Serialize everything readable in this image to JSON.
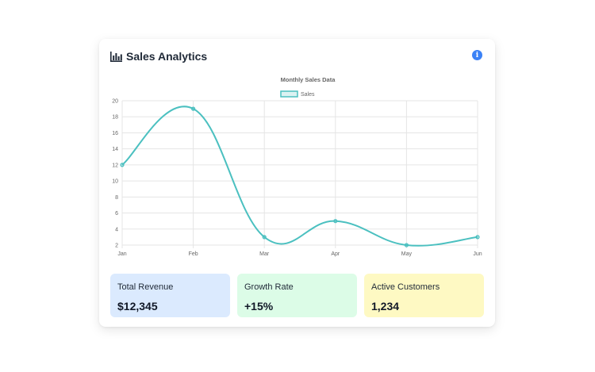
{
  "header": {
    "title": "Sales Analytics",
    "icon": "bar-chart-icon",
    "info_icon": "info-icon",
    "info_glyph": "i"
  },
  "chart_data": {
    "type": "line",
    "title": "Monthly Sales Data",
    "categories": [
      "Jan",
      "Feb",
      "Mar",
      "Apr",
      "May",
      "Jun"
    ],
    "series": [
      {
        "name": "Sales",
        "values": [
          12,
          19,
          3,
          5,
          2,
          3
        ],
        "color": "#4bc0c0"
      }
    ],
    "ylim": [
      2,
      20
    ],
    "yticks": [
      2,
      4,
      6,
      8,
      10,
      12,
      14,
      16,
      18,
      20
    ],
    "grid": true,
    "legend": "top-center"
  },
  "stats": [
    {
      "label": "Total Revenue",
      "value": "$12,345",
      "bg": "#dbeafe"
    },
    {
      "label": "Growth Rate",
      "value": "+15%",
      "bg": "#dcfce7"
    },
    {
      "label": "Active Customers",
      "value": "1,234",
      "bg": "#fef9c3"
    }
  ]
}
